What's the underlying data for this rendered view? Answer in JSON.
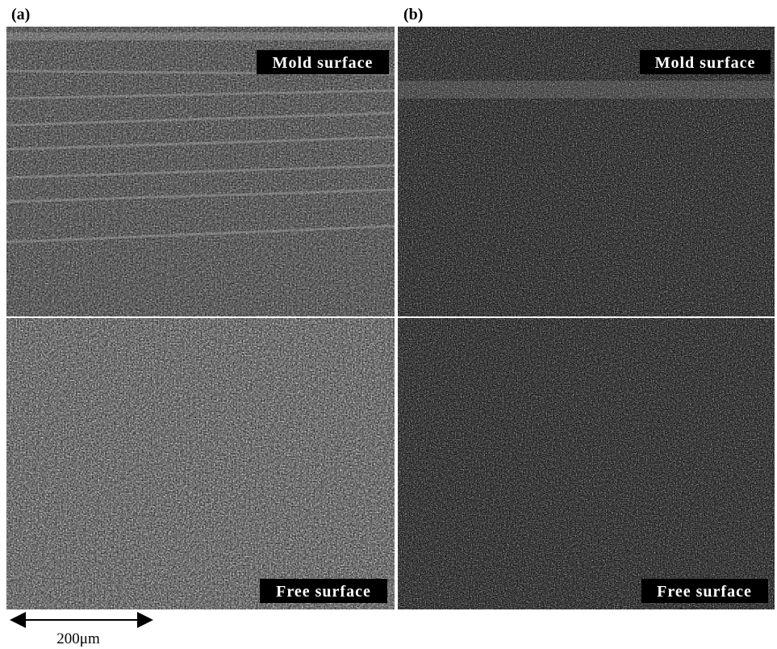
{
  "panels": [
    {
      "label": "(a)",
      "images": [
        {
          "caption": "Mold surface"
        },
        {
          "caption": "Free surface"
        }
      ]
    },
    {
      "label": "(b)",
      "images": [
        {
          "caption": "Mold surface"
        },
        {
          "caption": "Free surface"
        }
      ]
    }
  ],
  "scale_bar": {
    "label": "200μm"
  }
}
